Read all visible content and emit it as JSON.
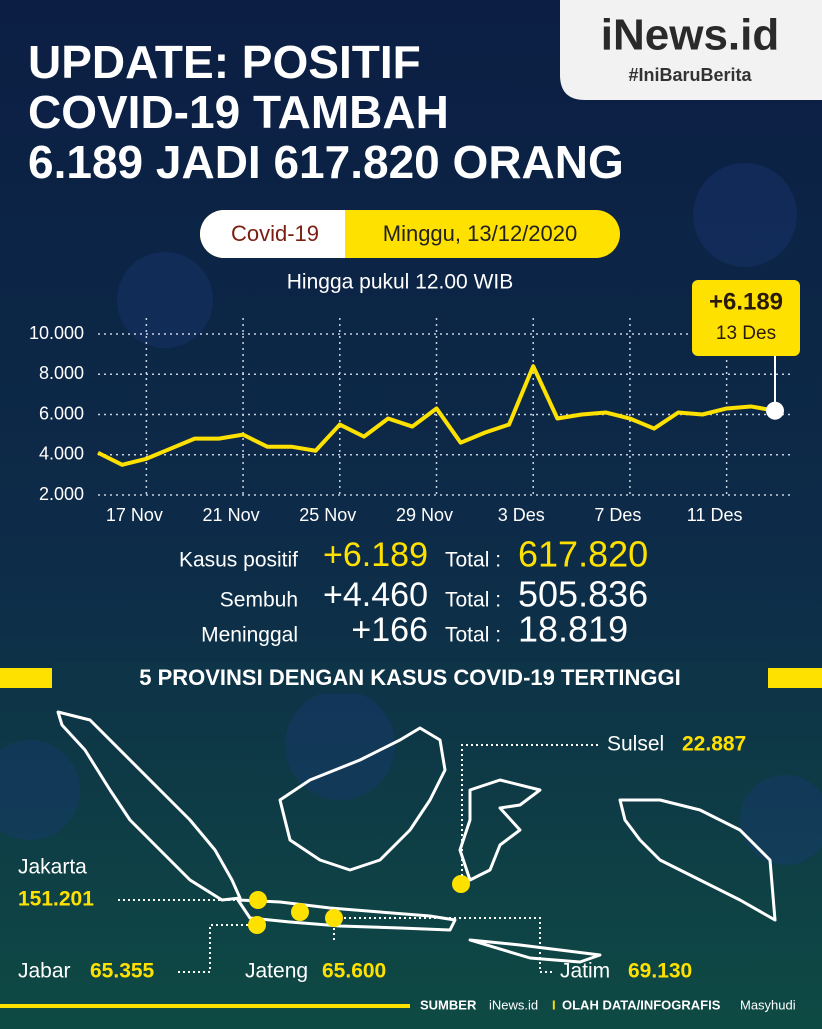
{
  "header": {
    "title_lines": [
      "UPDATE: POSITIF",
      "COVID-19 TAMBAH",
      "6.189 JADI 617.820 ORANG"
    ],
    "logo": "iNews.id",
    "tagline": "#IniBaruBerita"
  },
  "badge": {
    "left": "Covid-19",
    "right": "Minggu, 13/12/2020"
  },
  "chart_data": {
    "type": "line",
    "subtitle": "Hingga pukul 12.00 WIB",
    "categories": [
      null,
      null,
      "17 Nov",
      null,
      null,
      null,
      "21 Nov",
      null,
      null,
      null,
      "25 Nov",
      null,
      null,
      null,
      "29 Nov",
      null,
      null,
      null,
      "3 Des",
      null,
      null,
      null,
      "7 Des",
      null,
      null,
      null,
      "11 Des",
      null,
      null
    ],
    "series": [
      {
        "name": "Kasus positif",
        "color": "#ffe100",
        "values": [
          4100,
          3500,
          3800,
          4300,
          4800,
          4800,
          5000,
          4400,
          4400,
          4200,
          5500,
          4900,
          5800,
          5400,
          6300,
          4600,
          5100,
          5500,
          8400,
          5800,
          6000,
          6100,
          5800,
          5300,
          6100,
          6000,
          6300,
          6400,
          6189
        ]
      }
    ],
    "ylim": [
      2000,
      10000
    ],
    "yticks": [
      {
        "value": 2000,
        "label": "2.000"
      },
      {
        "value": 4000,
        "label": "4.000"
      },
      {
        "value": 6000,
        "label": "6.000"
      },
      {
        "value": 8000,
        "label": "8.000"
      },
      {
        "value": 10000,
        "label": "10.000"
      }
    ],
    "grid": true,
    "annotation": {
      "text": "+6.189",
      "date": "13 Des"
    }
  },
  "stats": [
    {
      "label": "Kasus positif",
      "change": "+6.189",
      "total_label": "Total :",
      "total": "617.820"
    },
    {
      "label": "Sembuh",
      "change": "+4.460",
      "total_label": "Total :",
      "total": "505.836"
    },
    {
      "label": "Meninggal",
      "change": "+166",
      "total_label": "Total :",
      "total": "18.819"
    }
  ],
  "provinces": {
    "title": "5 PROVINSI DENGAN KASUS COVID-19 TERTINGGI",
    "items": [
      {
        "name": "Sulsel",
        "value": "22.887"
      },
      {
        "name": "Jakarta",
        "value": "151.201"
      },
      {
        "name": "Jabar",
        "value": "65.355"
      },
      {
        "name": "Jateng",
        "value": "65.600"
      },
      {
        "name": "Jatim",
        "value": "69.130"
      }
    ]
  },
  "footer": {
    "source_label": "SUMBER",
    "source": "iNews.id",
    "separator": "I",
    "credit_label": "OLAH DATA/INFOGRAFIS",
    "credit": "Masyhudi"
  }
}
